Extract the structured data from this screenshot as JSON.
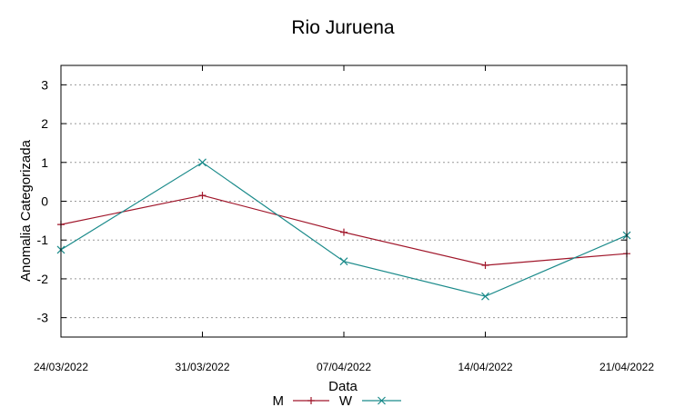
{
  "chart_data": {
    "type": "line",
    "title": "Rio Juruena",
    "xlabel": "Data",
    "ylabel": "Anomalia Categorizada",
    "categories": [
      "24/03/2022",
      "31/03/2022",
      "07/04/2022",
      "14/04/2022",
      "21/04/2022"
    ],
    "yticks": [
      "3",
      "2",
      "1",
      "0",
      "-1",
      "-2",
      "-3"
    ],
    "ylim": [
      -3.5,
      3.5
    ],
    "grid": true,
    "legend_position": "bottom",
    "series": [
      {
        "name": "M",
        "color": "#a0162a",
        "marker": "plus",
        "values": [
          -0.6,
          0.15,
          -0.8,
          -1.65,
          -1.35
        ]
      },
      {
        "name": "W",
        "color": "#1a8a8a",
        "marker": "cross",
        "values": [
          -1.25,
          1.0,
          -1.55,
          -2.45,
          -0.88
        ]
      }
    ]
  }
}
